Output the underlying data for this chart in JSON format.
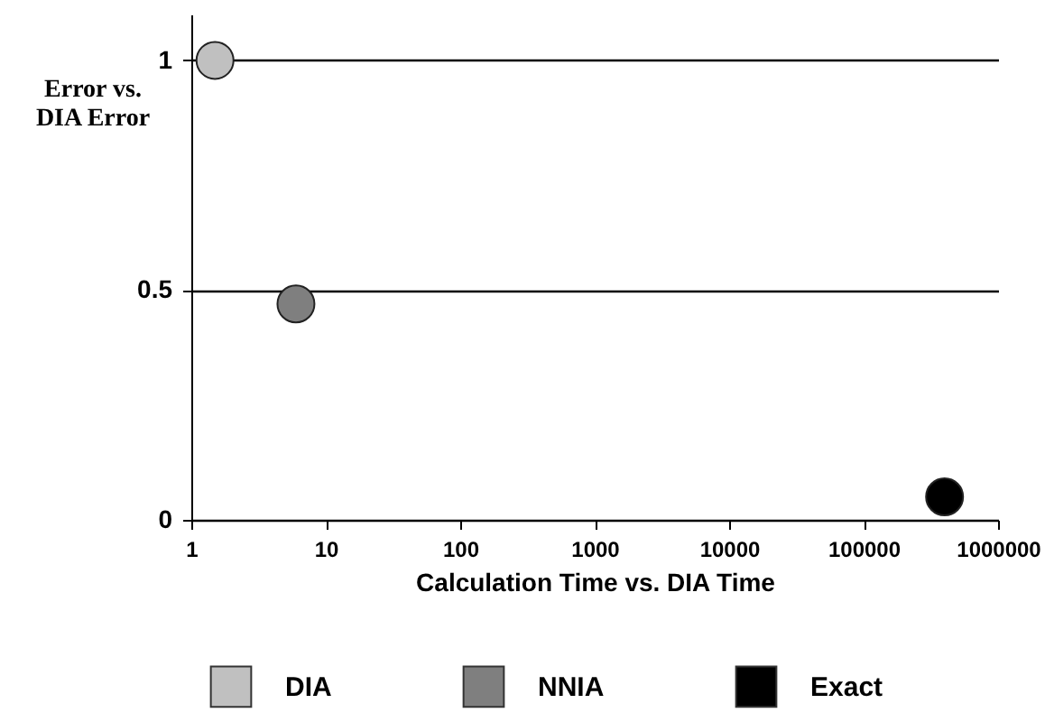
{
  "chart_data": {
    "type": "scatter",
    "xlabel": "Calculation  Time vs. DIA Time",
    "ylabel": "Error vs. DIA  Error",
    "log": "x",
    "xlim": [
      1,
      1000000
    ],
    "xticks": [
      1,
      10,
      100,
      1000,
      10000,
      100000,
      1000000
    ],
    "ylim": [
      0,
      1.1
    ],
    "yticks": [
      0,
      0.5,
      1
    ],
    "grid": "y",
    "legend": "bottom",
    "marker": "circle",
    "series": [
      {
        "name": "DIA",
        "color": "#c0c0c0",
        "x": [
          1.5
        ],
        "values": [
          1
        ]
      },
      {
        "name": "NNIA",
        "color": "#7f7f7f",
        "x": [
          6
        ],
        "values": [
          0.47
        ]
      },
      {
        "name": "Exact",
        "color": "#000000",
        "x": [
          400000
        ],
        "values": [
          0.05
        ]
      }
    ]
  }
}
